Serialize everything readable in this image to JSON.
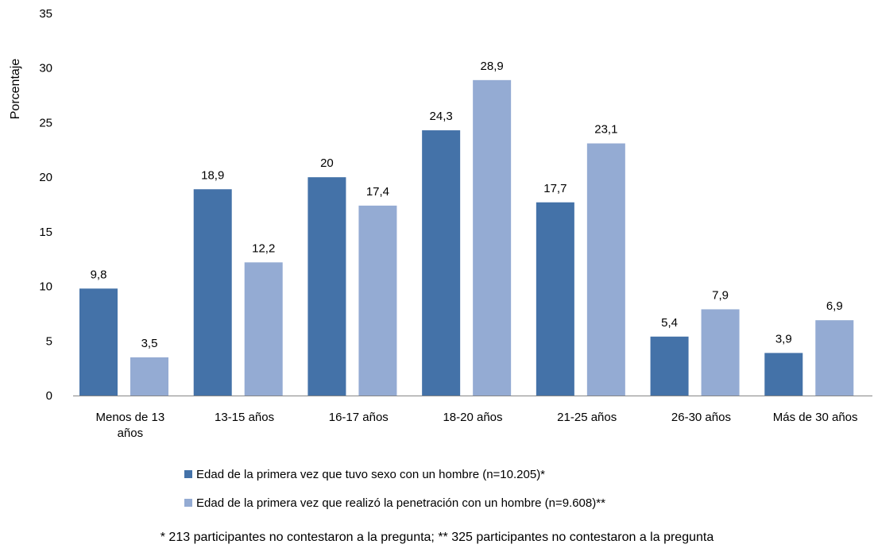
{
  "chart_data": {
    "type": "bar",
    "ylabel": "Porcentaje",
    "ylim": [
      0,
      35
    ],
    "yticks": [
      "0",
      "5",
      "10",
      "15",
      "20",
      "25",
      "30",
      "35"
    ],
    "categories": [
      [
        "Menos de 13",
        "años"
      ],
      [
        "13-15 años"
      ],
      [
        "16-17 años"
      ],
      [
        "18-20 años"
      ],
      [
        "21-25 años"
      ],
      [
        "26-30 años"
      ],
      [
        "Más de 30 años"
      ]
    ],
    "series": [
      {
        "name": "Edad de la primera vez que tuvo sexo con un hombre (n=10.205)*",
        "color": "#4472a8",
        "values": [
          9.8,
          18.9,
          20,
          24.3,
          17.7,
          5.4,
          3.9
        ],
        "labels": [
          "9,8",
          "18,9",
          "20",
          "24,3",
          "17,7",
          "5,4",
          "3,9"
        ]
      },
      {
        "name": "Edad de la primera vez que realizó la penetración con un hombre (n=9.608)**",
        "color": "#94abd3",
        "values": [
          3.5,
          12.2,
          17.4,
          28.9,
          23.1,
          7.9,
          6.9
        ],
        "labels": [
          "3,5",
          "12,2",
          "17,4",
          "28,9",
          "23,1",
          "7,9",
          "6,9"
        ]
      }
    ],
    "grid": false,
    "legend_position": "bottom"
  },
  "footnote": "* 213 participantes no contestaron a la pregunta; ** 325 participantes no contestaron a la pregunta"
}
